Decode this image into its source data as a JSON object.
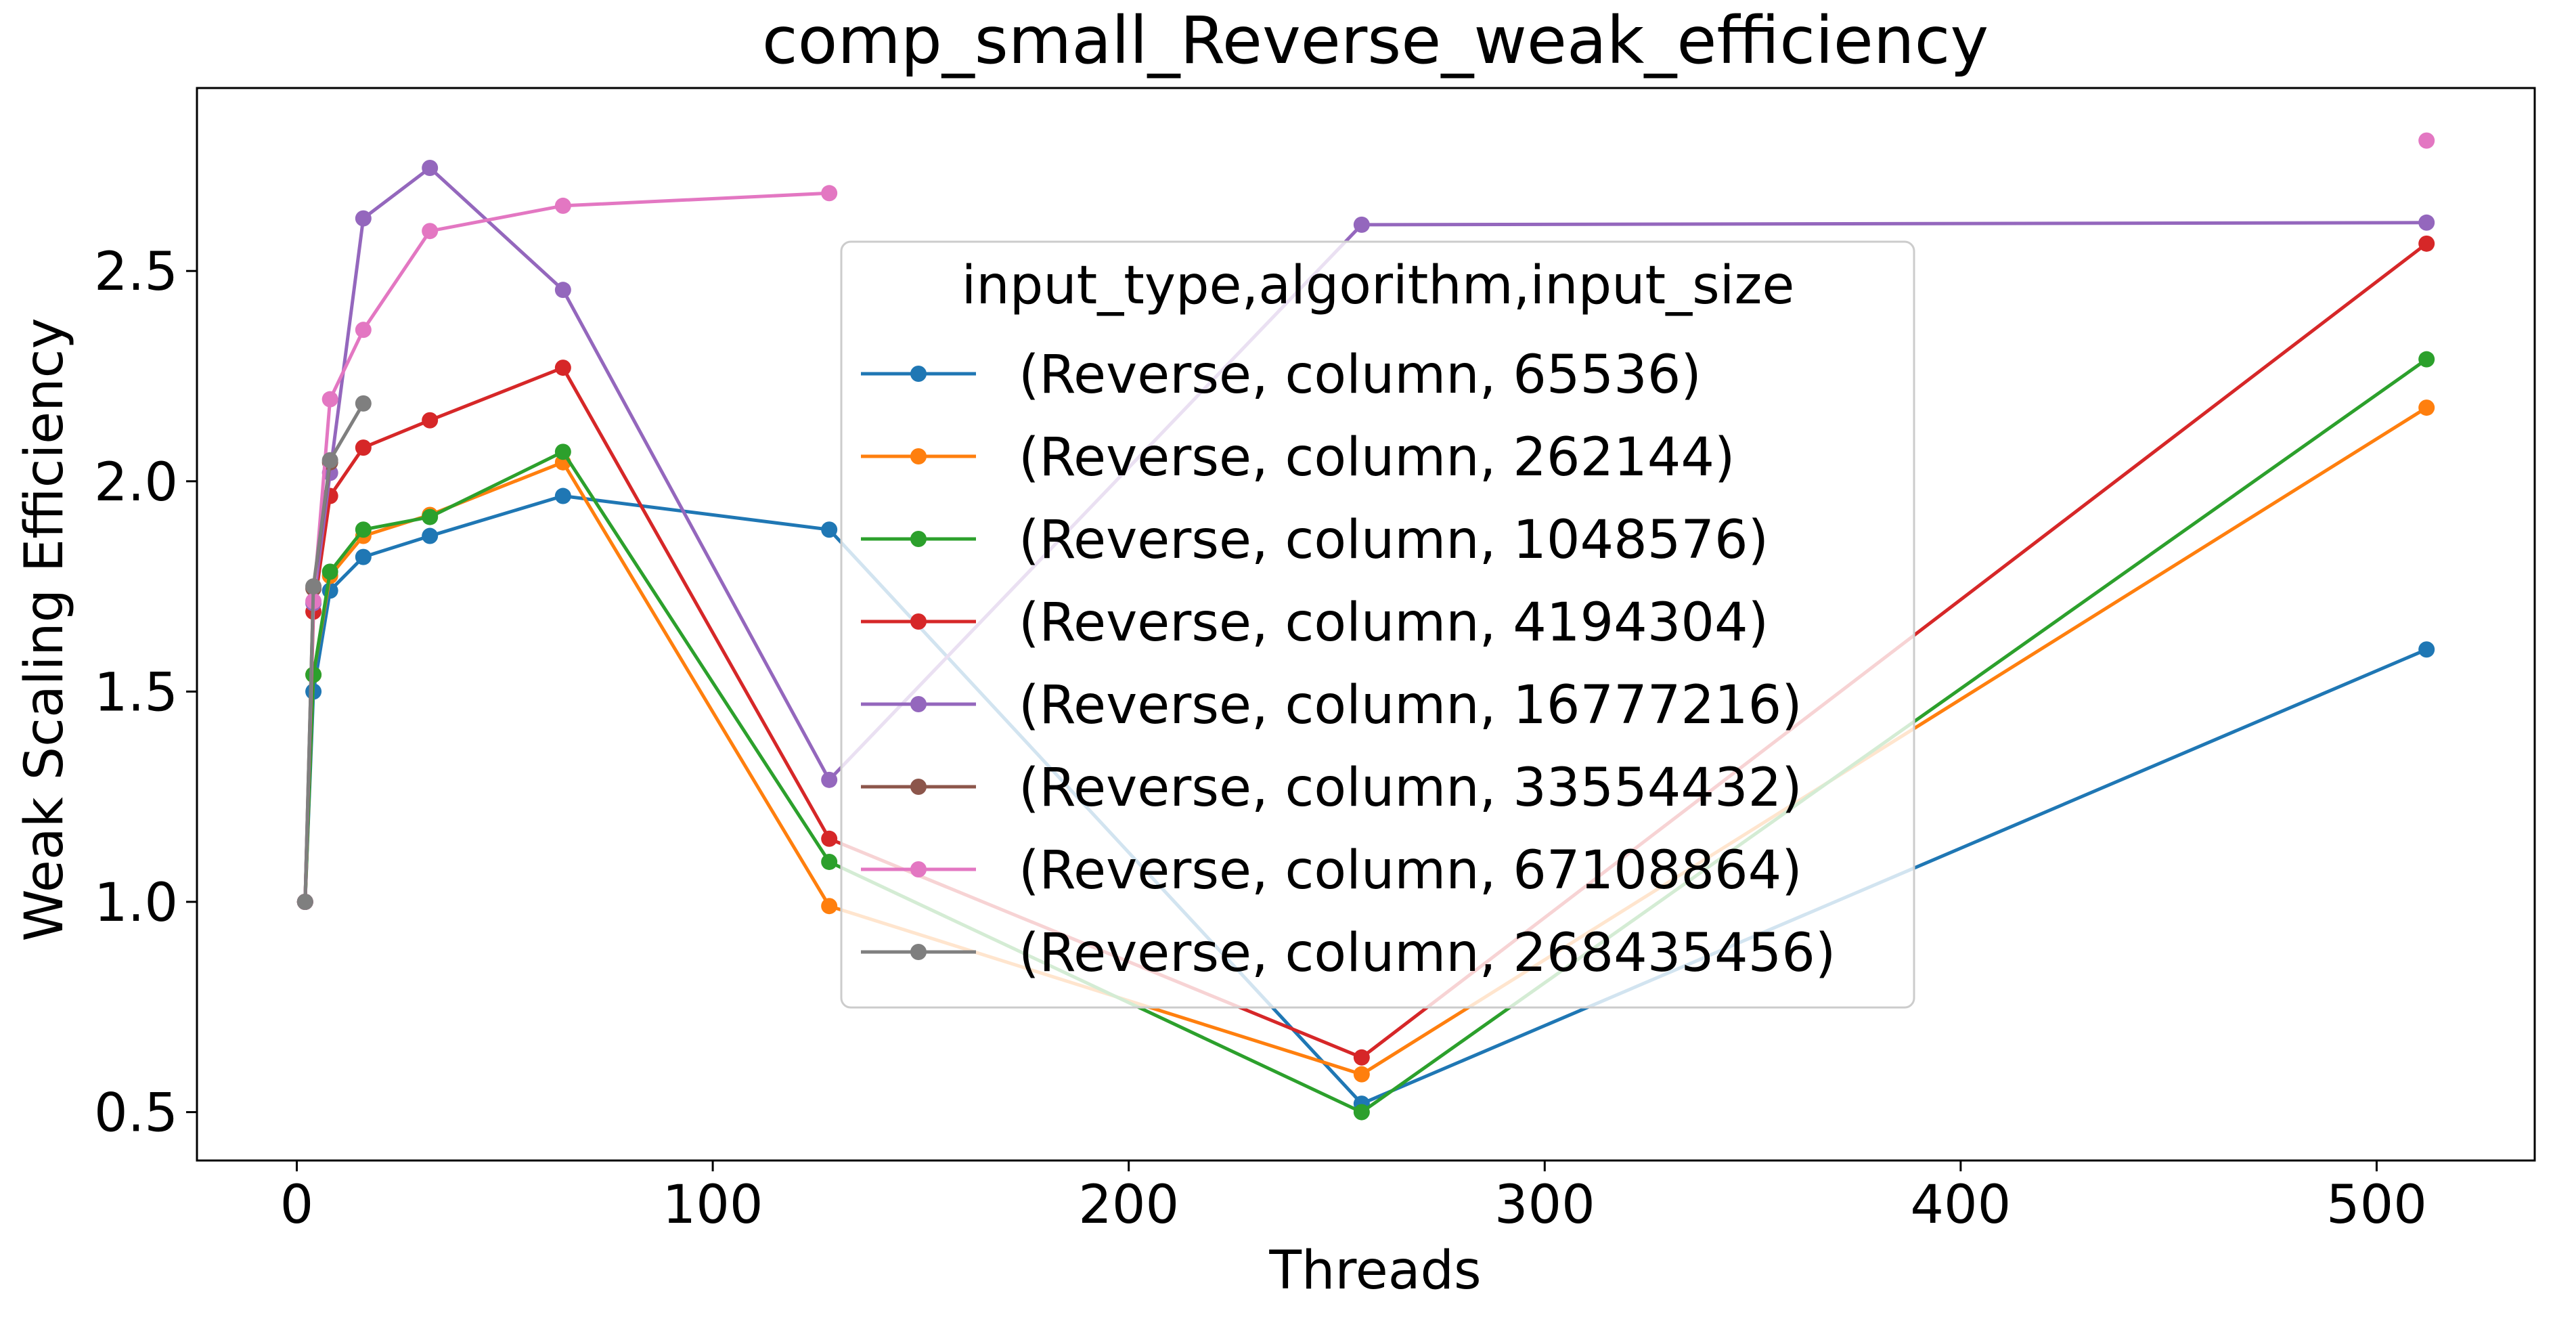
{
  "chart_data": {
    "type": "line",
    "title": "comp_small_Reverse_weak_efficiency",
    "xlabel": "Threads",
    "ylabel": "Weak Scaling Efficiency",
    "xlim": [
      -24,
      538
    ],
    "ylim": [
      0.385,
      2.935
    ],
    "xticks": [
      0,
      100,
      200,
      300,
      400,
      500
    ],
    "yticks": [
      0.5,
      1.0,
      1.5,
      2.0,
      2.5
    ],
    "xtick_labels": [
      "0",
      "100",
      "200",
      "300",
      "400",
      "500"
    ],
    "ytick_labels": [
      "0.5",
      "1.0",
      "1.5",
      "2.0",
      "2.5"
    ],
    "grid": false,
    "legend": {
      "title": "input_type,algorithm,input_size",
      "placement": "center"
    },
    "series": [
      {
        "name": "(Reverse, column, 65536)",
        "color": "#1f77b4",
        "points": [
          [
            2,
            1.0
          ],
          [
            4,
            1.5
          ],
          [
            8,
            1.74
          ],
          [
            16,
            1.82
          ],
          [
            32,
            1.87
          ],
          [
            64,
            1.965
          ],
          [
            128,
            1.885
          ],
          [
            256,
            0.52
          ],
          [
            512,
            1.6
          ]
        ]
      },
      {
        "name": "(Reverse, column, 262144)",
        "color": "#ff7f0e",
        "points": [
          [
            2,
            1.0
          ],
          [
            4,
            1.54
          ],
          [
            8,
            1.775
          ],
          [
            16,
            1.87
          ],
          [
            32,
            1.92
          ],
          [
            64,
            2.045
          ],
          [
            128,
            0.99
          ],
          [
            256,
            0.59
          ],
          [
            512,
            2.175
          ]
        ]
      },
      {
        "name": "(Reverse, column, 1048576)",
        "color": "#2ca02c",
        "points": [
          [
            2,
            1.0
          ],
          [
            4,
            1.54
          ],
          [
            8,
            1.785
          ],
          [
            16,
            1.885
          ],
          [
            32,
            1.915
          ],
          [
            64,
            2.07
          ],
          [
            128,
            1.095
          ],
          [
            256,
            0.5
          ],
          [
            512,
            2.29
          ]
        ]
      },
      {
        "name": "(Reverse, column, 4194304)",
        "color": "#d62728",
        "points": [
          [
            2,
            1.0
          ],
          [
            4,
            1.69
          ],
          [
            8,
            1.965
          ],
          [
            16,
            2.08
          ],
          [
            32,
            2.145
          ],
          [
            64,
            2.27
          ],
          [
            128,
            1.15
          ],
          [
            256,
            0.63
          ],
          [
            512,
            2.565
          ]
        ]
      },
      {
        "name": "(Reverse, column, 16777216)",
        "color": "#9467bd",
        "points": [
          [
            2,
            1.0
          ],
          [
            4,
            1.71
          ],
          [
            8,
            2.02
          ],
          [
            16,
            2.625
          ],
          [
            32,
            2.745
          ],
          [
            64,
            2.455
          ],
          [
            128,
            1.29
          ],
          [
            256,
            2.61
          ],
          [
            512,
            2.615
          ]
        ]
      },
      {
        "name": "(Reverse, column, 33554432)",
        "color": "#8c564b",
        "points": [
          [
            2,
            1.0
          ],
          [
            4,
            1.745
          ],
          [
            8,
            2.045
          ]
        ]
      },
      {
        "name": "(Reverse, column, 67108864)",
        "color": "#e377c2",
        "points": [
          [
            2,
            1.0
          ],
          [
            4,
            1.715
          ],
          [
            8,
            2.195
          ],
          [
            16,
            2.36
          ],
          [
            32,
            2.595
          ],
          [
            64,
            2.655
          ],
          [
            128,
            2.685
          ],
          [
            512,
            2.81
          ]
        ],
        "segments": [
          [
            0,
            6
          ]
        ],
        "isolated": [
          7
        ]
      },
      {
        "name": "(Reverse, column, 268435456)",
        "color": "#7f7f7f",
        "points": [
          [
            2,
            1.0
          ],
          [
            4,
            1.75
          ],
          [
            8,
            2.05
          ],
          [
            16,
            2.185
          ]
        ]
      }
    ]
  }
}
